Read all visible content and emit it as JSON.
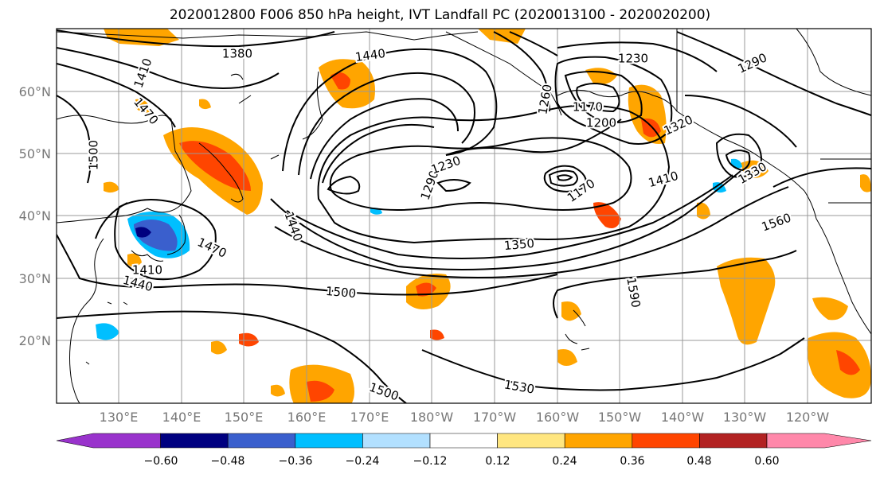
{
  "title": "2020012800 F006 850 hPa height, IVT Landfall PC (2020013100 - 2020020200)",
  "lat_labels": [
    "60°N",
    "50°N",
    "40°N",
    "30°N",
    "20°N"
  ],
  "lon_labels": [
    "130°E",
    "140°E",
    "150°E",
    "160°E",
    "170°E",
    "180°W",
    "170°W",
    "160°W",
    "150°W",
    "140°W",
    "130°W",
    "120°W"
  ],
  "contour_labels": [
    "1380",
    "1440",
    "1230",
    "1290",
    "1410",
    "1470",
    "1500",
    "1260",
    "1170",
    "1200",
    "1320",
    "1330",
    "1290",
    "1230",
    "1170",
    "1410",
    "1440",
    "1560",
    "1470",
    "1410",
    "1440",
    "1350",
    "1500",
    "1590",
    "1500",
    "1530"
  ],
  "colorbar": {
    "ticks": [
      "−0.60",
      "−0.48",
      "−0.36",
      "−0.24",
      "−0.12",
      "0.12",
      "0.24",
      "0.36",
      "0.48",
      "0.60"
    ],
    "colors": [
      "#9933cc",
      "#000080",
      "#3a5fcd",
      "#00bfff",
      "#b2e0ff",
      "#ffffff",
      "#ffe680",
      "#ffa500",
      "#ff4500",
      "#b22222",
      "#ff88aa"
    ]
  }
}
